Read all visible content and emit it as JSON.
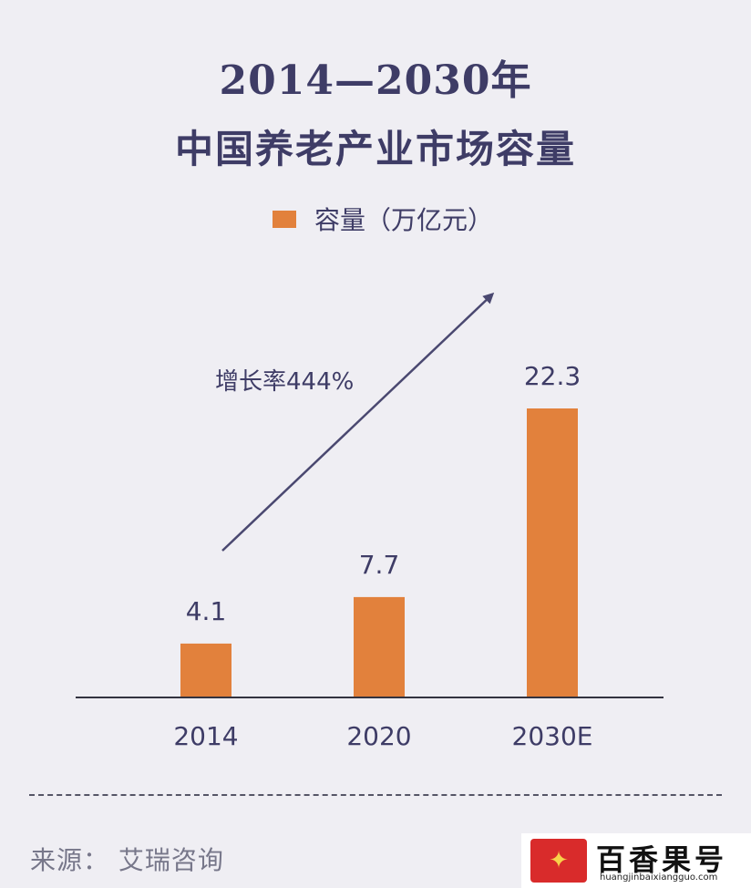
{
  "title_line1": "2014—2030年",
  "title_line2": "中国养老产业市场容量",
  "legend": {
    "label": "容量（万亿元）",
    "color": "#e2813c"
  },
  "chart_data": {
    "type": "bar",
    "title": "2014—2030年 中国养老产业市场容量",
    "categories": [
      "2014",
      "2020",
      "2030E"
    ],
    "series": [
      {
        "name": "容量（万亿元）",
        "values": [
          4.1,
          7.7,
          22.3
        ],
        "labels": [
          "4.1",
          "7.7",
          "22.3"
        ]
      }
    ],
    "ylim": [
      0,
      22.3
    ],
    "grid": false,
    "legend_position": "top-center",
    "annotation": "增长率444%",
    "bar_color": "#e2813c",
    "text_color": "#3e3c66"
  },
  "source": "来源：  艾瑞咨询",
  "watermark": {
    "name": "百香果号",
    "url": "huangjinbaixiangguo.com"
  }
}
